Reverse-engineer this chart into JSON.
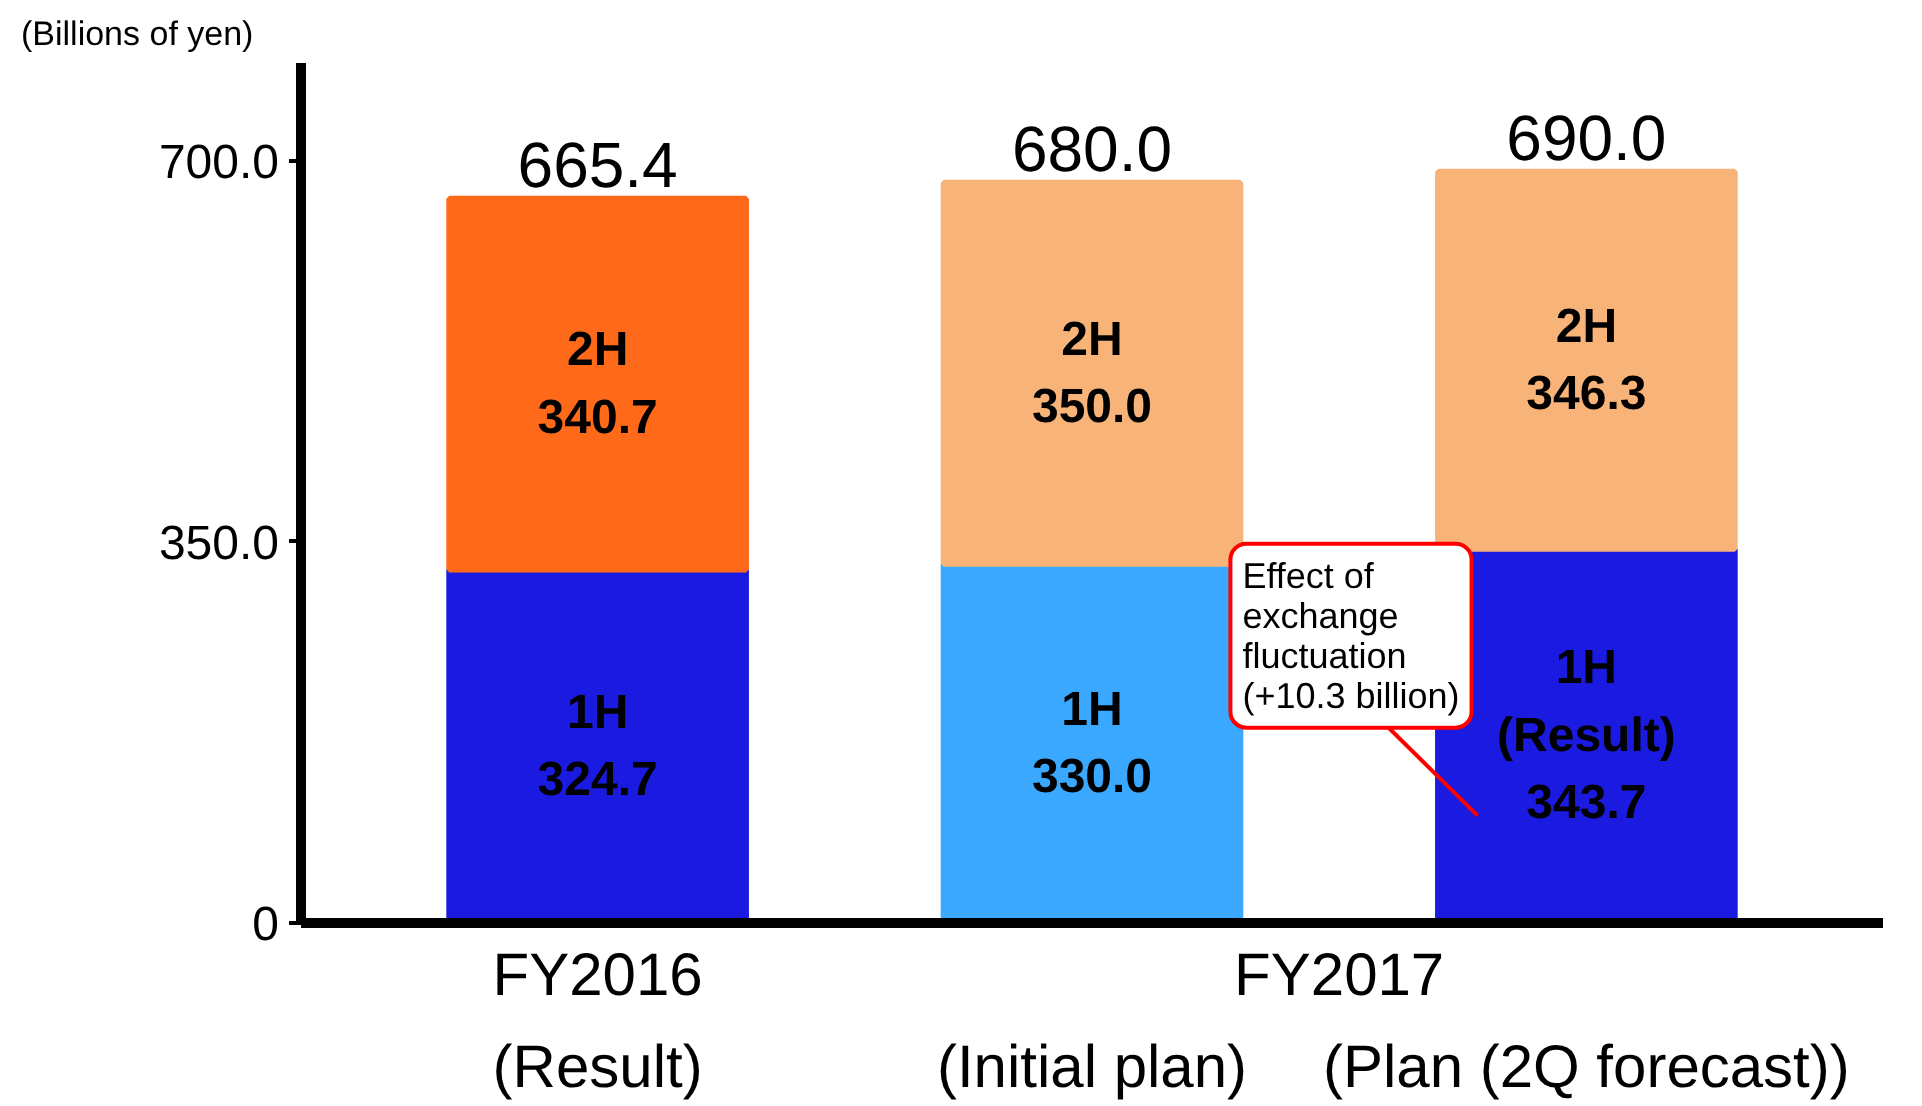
{
  "chart_data": {
    "type": "bar",
    "stacked": true,
    "ylabel": "(Billions of yen)",
    "categories": [
      "(Result)",
      "(Initial plan)",
      "(Plan (2Q forecast))"
    ],
    "series": [
      {
        "name": "1H",
        "colors": [
          "#1a1ae0",
          "#3aa8ff",
          "#1a1ae0"
        ],
        "values": [
          324.7,
          330.0,
          343.7
        ],
        "value_labels": [
          "324.7",
          "330.0",
          "(Result)\n343.7"
        ]
      },
      {
        "name": "2H",
        "colors": [
          "#ff6a1a",
          "#f8b478",
          "#f8b478"
        ],
        "values": [
          340.7,
          350.0,
          346.3
        ],
        "value_labels": [
          "340.7",
          "350.0",
          "346.3"
        ]
      }
    ],
    "totals": [
      "665.4",
      "680.0",
      "690.0"
    ],
    "ylim": [
      0,
      790
    ],
    "yticks": [
      0,
      {
        "value": 350,
        "label": "350.0"
      },
      {
        "value": 700,
        "label": "700.0"
      }
    ],
    "grid": false,
    "annotations": [
      "FY2016",
      "FY2017",
      "Effect of\nexchange\nfluctuation\n(+10.3 billion)"
    ]
  }
}
